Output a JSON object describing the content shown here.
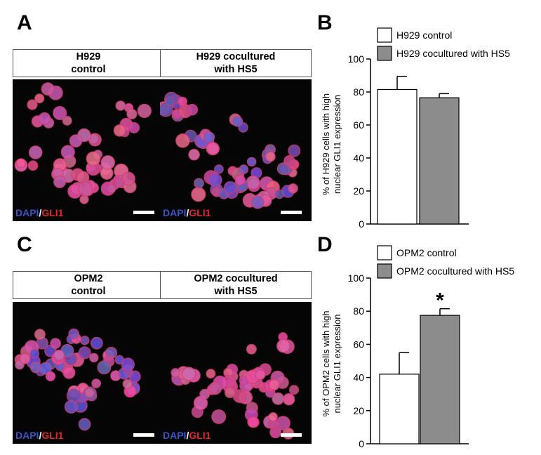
{
  "panels": {
    "A": {
      "letter": "A",
      "images": [
        {
          "label_line1": "H929",
          "label_line2": "control"
        },
        {
          "label_line1": "H929 cocultured",
          "label_line2": "with HS5"
        }
      ]
    },
    "B": {
      "letter": "B"
    },
    "C": {
      "letter": "C",
      "images": [
        {
          "label_line1": "OPM2",
          "label_line2": "control"
        },
        {
          "label_line1": "OPM2 cocultured",
          "label_line2": "with HS5"
        }
      ]
    },
    "D": {
      "letter": "D"
    }
  },
  "stain": {
    "dapi": "DAPI",
    "slash": "/",
    "gli1": "GLI1"
  },
  "colors": {
    "control": "#ffffff",
    "cocultured": "#8c8c8c",
    "dapi": "#3a55c8",
    "gli1": "#e02a2a"
  },
  "chart_data": [
    {
      "id": "B",
      "type": "bar",
      "categories": [
        "H929 control",
        "H929 cocultured with HS5"
      ],
      "values": [
        81.5,
        76.5
      ],
      "errors": [
        8,
        2.5
      ],
      "ylabel": "% of H929 cells with high nuclear GLI1 expression",
      "ylabel_line1": "% of H929 cells with high",
      "ylabel_line2": "nuclear GLI1 expression",
      "ylim": [
        0,
        100
      ],
      "yticks": [
        0,
        20,
        40,
        60,
        80,
        100
      ],
      "legend": [
        "H929 control",
        "H929 cocultured with HS5"
      ],
      "legend_position": "top",
      "annotation": "",
      "grid": false
    },
    {
      "id": "D",
      "type": "bar",
      "categories": [
        "OPM2 control",
        "OPM2 cocultured with HS5"
      ],
      "values": [
        42,
        77.5
      ],
      "errors": [
        13,
        4
      ],
      "ylabel": "% of OPM2 cells with high nuclear GLI1 expression",
      "ylabel_line1": "% of OPM2 cells with high",
      "ylabel_line2": "nuclear GLI1 expression",
      "ylim": [
        0,
        100
      ],
      "yticks": [
        0,
        20,
        40,
        60,
        80,
        100
      ],
      "legend": [
        "OPM2 control",
        "OPM2 cocultured with HS5"
      ],
      "legend_position": "top",
      "annotation": "*",
      "grid": false
    }
  ]
}
